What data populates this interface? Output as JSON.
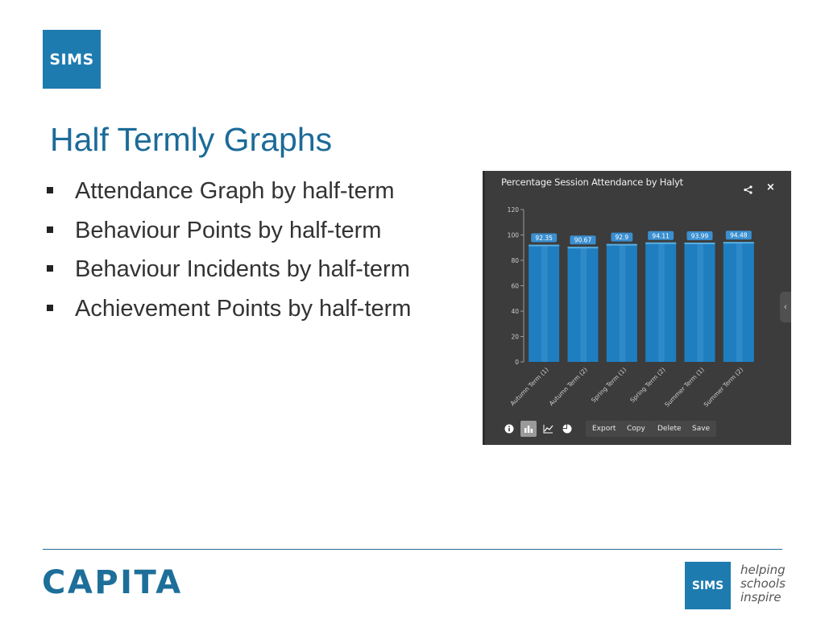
{
  "logo_top": {
    "text": "SIMS"
  },
  "title": "Half Termly Graphs",
  "bullets": [
    "Attendance Graph by half-term",
    "Behaviour Points by half-term",
    "Behaviour Incidents by half-term",
    "Achievement Points by half-term"
  ],
  "panel": {
    "title": "Percentage Session Attendance by Halyt",
    "share_icon": "share-icon",
    "close_label": "×",
    "collapse_label": "‹",
    "toolbar": {
      "icons": [
        "info-icon",
        "bar-chart-icon",
        "line-chart-icon",
        "pie-chart-icon"
      ],
      "buttons": [
        "Export",
        "Copy",
        "Delete",
        "Save"
      ]
    }
  },
  "chart_data": {
    "type": "bar",
    "title": "Percentage Session Attendance by Halyt",
    "categories": [
      "Autumn Term (1)",
      "Autumn Term (2)",
      "Spring Term (1)",
      "Spring Term (2)",
      "Summer Term (1)",
      "Summer Term (2)"
    ],
    "values": [
      92.35,
      90.67,
      92.9,
      94.11,
      93.99,
      94.48
    ],
    "data_labels": [
      "92.35",
      "90.67",
      "92.9",
      "94.11",
      "93.99",
      "94.48"
    ],
    "yticks": [
      "0",
      "20",
      "40",
      "60",
      "80",
      "100",
      "120"
    ],
    "ylim": [
      0,
      120
    ],
    "bar_color": "#1f7ec0",
    "background": "#3c3c3c"
  },
  "footer": {
    "brand": "CAPITA",
    "logo": "SIMS",
    "tagline": [
      "helping",
      "schools",
      "inspire"
    ]
  },
  "colors": {
    "accent": "#1e7bb0",
    "title": "#1b6b98"
  }
}
